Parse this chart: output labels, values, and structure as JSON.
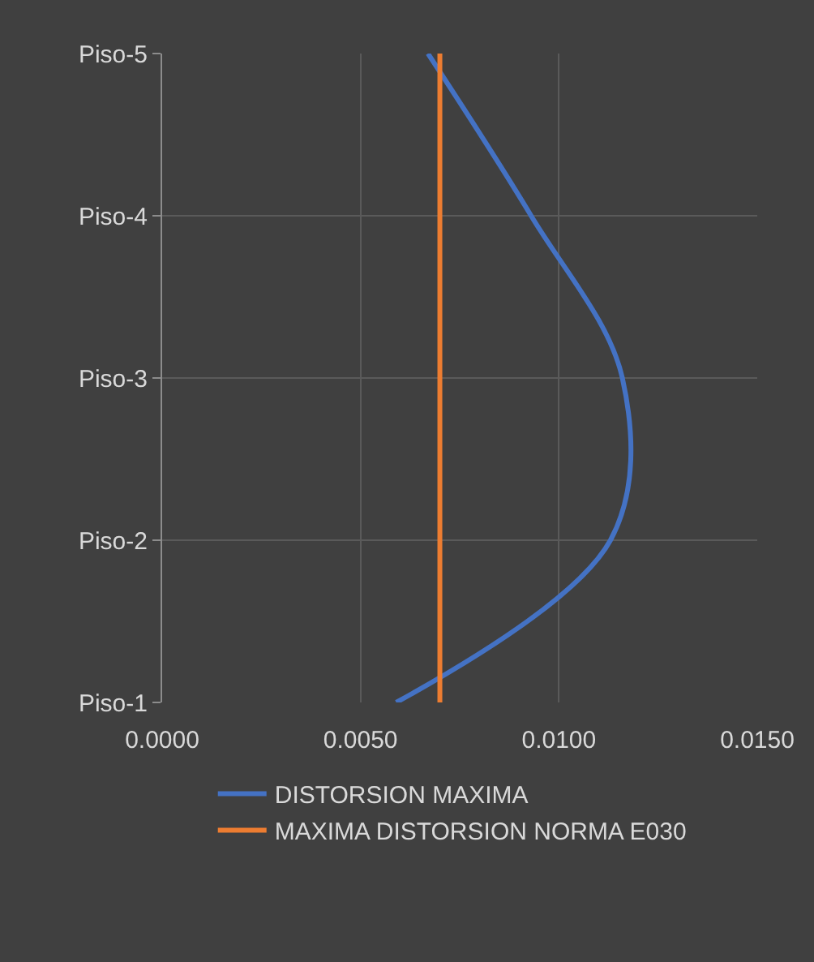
{
  "chart_data": {
    "type": "line",
    "orientation": "horizontal",
    "categories": [
      "Piso-5",
      "Piso-4",
      "Piso-3",
      "Piso-2",
      "Piso-1"
    ],
    "series": [
      {
        "name": "DISTORSION MAXIMA",
        "color": "#4472c4",
        "values": [
          0.0067,
          0.0093,
          0.0116,
          0.0113,
          0.0059
        ]
      },
      {
        "name": "MAXIMA DISTORSION NORMA E030",
        "color": "#ed7d31",
        "values": [
          0.007,
          0.007,
          0.007,
          0.007,
          0.007
        ]
      }
    ],
    "xlim": [
      0,
      0.015
    ],
    "xticks": [
      {
        "value": 0,
        "label": "0.0000"
      },
      {
        "value": 0.005,
        "label": "0.0050"
      },
      {
        "value": 0.01,
        "label": "0.0100"
      },
      {
        "value": 0.015,
        "label": "0.0150"
      }
    ],
    "grid": true,
    "legend": "bottom",
    "marker": "none",
    "line_style": "solid"
  }
}
